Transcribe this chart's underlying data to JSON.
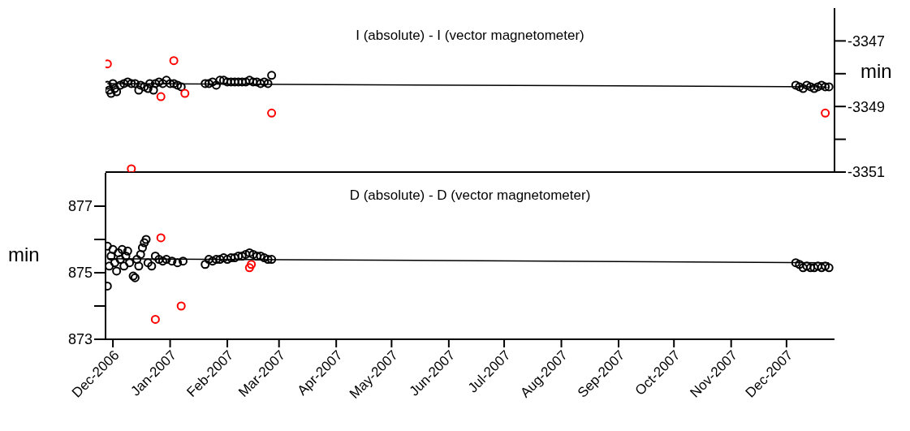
{
  "chart_data": [
    {
      "type": "scatter",
      "title": "I (absolute) - I (vector magnetometer)",
      "ylabel": "min",
      "marker": "circle",
      "tick_labels": "y",
      "xlim": [
        "2006-11-27",
        "2007-12-27"
      ],
      "xticks": [
        {
          "value": "2006-12-01",
          "label": null
        },
        {
          "value": "2007-01-01",
          "label": null
        },
        {
          "value": "2007-02-01",
          "label": null
        },
        {
          "value": "2007-03-01",
          "label": null
        },
        {
          "value": "2007-04-01",
          "label": null
        },
        {
          "value": "2007-05-01",
          "label": null
        },
        {
          "value": "2007-06-01",
          "label": null
        },
        {
          "value": "2007-07-01",
          "label": null
        },
        {
          "value": "2007-08-01",
          "label": null
        },
        {
          "value": "2007-09-01",
          "label": null
        },
        {
          "value": "2007-10-01",
          "label": null
        },
        {
          "value": "2007-11-01",
          "label": null
        },
        {
          "value": "2007-12-01",
          "label": null
        }
      ],
      "ylim": [
        -3351,
        -3346
      ],
      "yticks": [
        -3351,
        {
          "value": -3350,
          "label": null
        },
        -3349,
        {
          "value": -3348,
          "label": null
        },
        -3347
      ],
      "series": [
        {
          "color": "#000000",
          "x": [
            "2006-11-28",
            "2006-11-29",
            "2006-11-30",
            "2006-12-01",
            "2006-12-02",
            "2006-12-03",
            "2006-12-05",
            "2006-12-07",
            "2006-12-09",
            "2006-12-11",
            "2006-12-13",
            "2006-12-15",
            "2006-12-16",
            "2006-12-18",
            "2006-12-20",
            "2006-12-21",
            "2006-12-23",
            "2006-12-24",
            "2006-12-26",
            "2006-12-28",
            "2006-12-30",
            "2007-01-01",
            "2007-01-03",
            "2007-01-05",
            "2007-01-07",
            "2007-01-20",
            "2007-01-22",
            "2007-01-24",
            "2007-01-26",
            "2007-01-28",
            "2007-01-30",
            "2007-02-01",
            "2007-02-03",
            "2007-02-05",
            "2007-02-07",
            "2007-02-09",
            "2007-02-11",
            "2007-02-13",
            "2007-02-15",
            "2007-02-17",
            "2007-02-19",
            "2007-02-21",
            "2007-02-23",
            "2007-02-25",
            "2007-12-06",
            "2007-12-08",
            "2007-12-10",
            "2007-12-12",
            "2007-12-14",
            "2007-12-16",
            "2007-12-18",
            "2007-12-20",
            "2007-12-22",
            "2007-12-24"
          ],
          "values": [
            -3348.35,
            -3348.5,
            -3348.6,
            -3348.3,
            -3348.45,
            -3348.55,
            -3348.35,
            -3348.3,
            -3348.25,
            -3348.3,
            -3348.3,
            -3348.5,
            -3348.35,
            -3348.4,
            -3348.45,
            -3348.3,
            -3348.5,
            -3348.3,
            -3348.25,
            -3348.3,
            -3348.2,
            -3348.3,
            -3348.3,
            -3348.35,
            -3348.4,
            -3348.3,
            -3348.3,
            -3348.25,
            -3348.35,
            -3348.2,
            -3348.2,
            -3348.25,
            -3348.25,
            -3348.25,
            -3348.25,
            -3348.25,
            -3348.25,
            -3348.2,
            -3348.25,
            -3348.25,
            -3348.3,
            -3348.25,
            -3348.3,
            -3348.05,
            -3348.35,
            -3348.4,
            -3348.45,
            -3348.35,
            -3348.4,
            -3348.45,
            -3348.4,
            -3348.35,
            -3348.4,
            -3348.4
          ]
        },
        {
          "color": "#ff0000",
          "x": [
            "2006-11-28",
            "2006-12-11",
            "2006-12-27",
            "2007-01-03",
            "2007-01-09",
            "2007-02-25",
            "2007-12-22"
          ],
          "values": [
            -3347.7,
            -3350.9,
            -3348.7,
            -3347.6,
            -3348.6,
            -3349.2,
            -3349.2
          ]
        },
        {
          "type": "line",
          "color": "#000000",
          "marker": "none",
          "x": [
            "2006-11-28",
            "2007-12-24"
          ],
          "values": [
            -3348.3,
            -3348.4
          ]
        }
      ]
    },
    {
      "type": "scatter",
      "title": "D (absolute) - D (vector magnetometer)",
      "ylabel": "min",
      "marker": "circle",
      "xlim": [
        "2006-11-27",
        "2007-12-27"
      ],
      "xticks": [
        {
          "value": "2006-12-01",
          "label": "Dec-2006"
        },
        {
          "value": "2007-01-01",
          "label": "Jan-2007"
        },
        {
          "value": "2007-02-01",
          "label": "Feb-2007"
        },
        {
          "value": "2007-03-01",
          "label": "Mar-2007"
        },
        {
          "value": "2007-04-01",
          "label": "Apr-2007"
        },
        {
          "value": "2007-05-01",
          "label": "May-2007"
        },
        {
          "value": "2007-06-01",
          "label": "Jun-2007"
        },
        {
          "value": "2007-07-01",
          "label": "Jul-2007"
        },
        {
          "value": "2007-08-01",
          "label": "Aug-2007"
        },
        {
          "value": "2007-09-01",
          "label": "Sep-2007"
        },
        {
          "value": "2007-10-01",
          "label": "Oct-2007"
        },
        {
          "value": "2007-11-01",
          "label": "Nov-2007"
        },
        {
          "value": "2007-12-01",
          "label": "Dec-2007"
        }
      ],
      "ylim": [
        873,
        878
      ],
      "yticks": [
        873,
        {
          "value": 874,
          "label": null
        },
        875,
        {
          "value": 876,
          "label": null
        },
        877
      ],
      "series": [
        {
          "color": "#000000",
          "x": [
            "2006-11-28",
            "2006-11-28",
            "2006-11-29",
            "2006-11-30",
            "2006-12-01",
            "2006-12-02",
            "2006-12-03",
            "2006-12-04",
            "2006-12-05",
            "2006-12-06",
            "2006-12-07",
            "2006-12-08",
            "2006-12-09",
            "2006-12-10",
            "2006-12-12",
            "2006-12-13",
            "2006-12-14",
            "2006-12-15",
            "2006-12-16",
            "2006-12-17",
            "2006-12-18",
            "2006-12-19",
            "2006-12-20",
            "2006-12-22",
            "2006-12-24",
            "2006-12-26",
            "2006-12-28",
            "2006-12-30",
            "2007-01-02",
            "2007-01-05",
            "2007-01-08",
            "2007-01-20",
            "2007-01-22",
            "2007-01-24",
            "2007-01-26",
            "2007-01-28",
            "2007-01-30",
            "2007-02-01",
            "2007-02-03",
            "2007-02-05",
            "2007-02-07",
            "2007-02-09",
            "2007-02-11",
            "2007-02-13",
            "2007-02-15",
            "2007-02-17",
            "2007-02-19",
            "2007-02-21",
            "2007-02-23",
            "2007-02-25",
            "2007-12-06",
            "2007-12-08",
            "2007-12-10",
            "2007-12-12",
            "2007-12-14",
            "2007-12-16",
            "2007-12-18",
            "2007-12-20",
            "2007-12-22",
            "2007-12-24"
          ],
          "values": [
            874.6,
            875.8,
            875.2,
            875.5,
            875.7,
            875.3,
            875.05,
            875.6,
            875.4,
            875.7,
            875.2,
            875.5,
            875.65,
            875.3,
            874.9,
            874.85,
            875.4,
            875.2,
            875.55,
            875.75,
            875.9,
            876.0,
            875.3,
            875.2,
            875.5,
            875.4,
            875.35,
            875.4,
            875.35,
            875.3,
            875.35,
            875.25,
            875.4,
            875.35,
            875.4,
            875.4,
            875.45,
            875.4,
            875.45,
            875.45,
            875.5,
            875.5,
            875.55,
            875.6,
            875.55,
            875.5,
            875.5,
            875.45,
            875.4,
            875.4,
            875.3,
            875.25,
            875.15,
            875.2,
            875.15,
            875.15,
            875.2,
            875.15,
            875.2,
            875.15
          ]
        },
        {
          "color": "#ff0000",
          "x": [
            "2006-12-24",
            "2006-12-27",
            "2007-01-07",
            "2007-02-13",
            "2007-02-14"
          ],
          "values": [
            873.6,
            876.05,
            874.0,
            875.15,
            875.25
          ]
        },
        {
          "type": "line",
          "color": "#000000",
          "marker": "none",
          "x": [
            "2006-11-28",
            "2007-12-24"
          ],
          "values": [
            875.42,
            875.3
          ]
        }
      ]
    }
  ]
}
